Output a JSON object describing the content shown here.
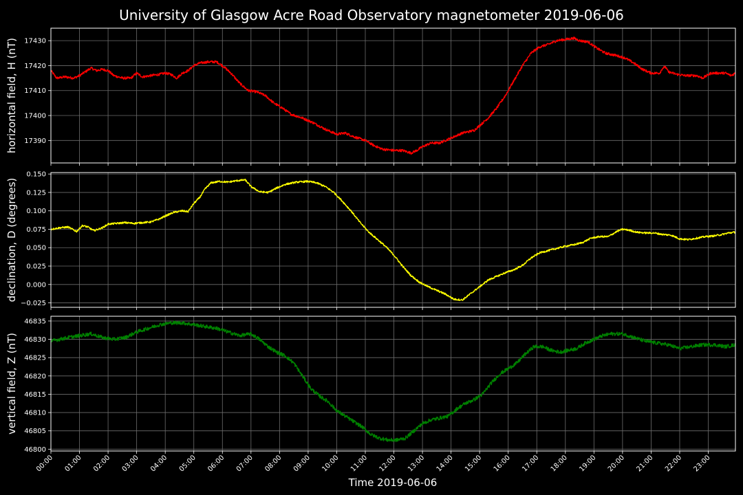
{
  "colors": {
    "background": "#000000",
    "axis": "#ffffff",
    "grid": "#6e6e6e",
    "text": "#ffffff"
  },
  "chart_data": [
    {
      "type": "line",
      "title": "University of Glasgow Acre Road Observatory magnetometer 2019-06-06",
      "ylabel": "horizontal field, H (nT)",
      "xlabel": "",
      "xlim_hours": [
        0,
        23.95
      ],
      "ylim": [
        17381,
        17435
      ],
      "yticks": [
        17390,
        17400,
        17410,
        17420,
        17430
      ],
      "ytick_labels": [
        "17390",
        "17400",
        "17410",
        "17420",
        "17430"
      ],
      "grid": true,
      "series": [
        {
          "color": "#ff0000",
          "noise": 0.5,
          "points": [
            [
              0.0,
              17418
            ],
            [
              0.2,
              17415
            ],
            [
              0.5,
              17415.5
            ],
            [
              0.8,
              17415
            ],
            [
              1.0,
              17416
            ],
            [
              1.2,
              17417.5
            ],
            [
              1.4,
              17419
            ],
            [
              1.6,
              17418
            ],
            [
              1.8,
              17418.5
            ],
            [
              2.0,
              17418
            ],
            [
              2.2,
              17416
            ],
            [
              2.5,
              17415
            ],
            [
              2.8,
              17415
            ],
            [
              3.0,
              17417
            ],
            [
              3.2,
              17415.5
            ],
            [
              3.5,
              17416
            ],
            [
              3.8,
              17416.5
            ],
            [
              4.0,
              17417
            ],
            [
              4.2,
              17416.5
            ],
            [
              4.4,
              17415
            ],
            [
              4.6,
              17417
            ],
            [
              4.8,
              17418
            ],
            [
              5.0,
              17420
            ],
            [
              5.2,
              17421
            ],
            [
              5.5,
              17421.5
            ],
            [
              5.8,
              17421.5
            ],
            [
              6.0,
              17420
            ],
            [
              6.3,
              17417
            ],
            [
              6.6,
              17413
            ],
            [
              6.9,
              17410
            ],
            [
              7.2,
              17409.5
            ],
            [
              7.5,
              17408
            ],
            [
              7.8,
              17405
            ],
            [
              8.1,
              17403
            ],
            [
              8.4,
              17400.5
            ],
            [
              8.8,
              17399
            ],
            [
              9.2,
              17397
            ],
            [
              9.6,
              17394.5
            ],
            [
              10.0,
              17392.5
            ],
            [
              10.3,
              17393
            ],
            [
              10.6,
              17391.5
            ],
            [
              11.0,
              17390
            ],
            [
              11.3,
              17388
            ],
            [
              11.6,
              17386.5
            ],
            [
              12.0,
              17386
            ],
            [
              12.3,
              17386
            ],
            [
              12.6,
              17385
            ],
            [
              12.8,
              17386
            ],
            [
              13.0,
              17387.5
            ],
            [
              13.3,
              17389
            ],
            [
              13.6,
              17389
            ],
            [
              14.0,
              17391
            ],
            [
              14.4,
              17393
            ],
            [
              14.8,
              17394
            ],
            [
              15.0,
              17396
            ],
            [
              15.3,
              17399
            ],
            [
              15.6,
              17403
            ],
            [
              15.9,
              17408
            ],
            [
              16.2,
              17414
            ],
            [
              16.5,
              17420
            ],
            [
              16.8,
              17425
            ],
            [
              17.1,
              17427.5
            ],
            [
              17.4,
              17428.5
            ],
            [
              17.7,
              17430
            ],
            [
              18.0,
              17430.5
            ],
            [
              18.3,
              17431
            ],
            [
              18.5,
              17430
            ],
            [
              18.8,
              17429.5
            ],
            [
              19.1,
              17427
            ],
            [
              19.4,
              17425
            ],
            [
              19.8,
              17424
            ],
            [
              20.1,
              17423
            ],
            [
              20.4,
              17421
            ],
            [
              20.7,
              17418.5
            ],
            [
              21.0,
              17417
            ],
            [
              21.3,
              17417
            ],
            [
              21.4,
              17419
            ],
            [
              21.5,
              17419.5
            ],
            [
              21.6,
              17417.5
            ],
            [
              21.9,
              17416.5
            ],
            [
              22.2,
              17416
            ],
            [
              22.6,
              17416
            ],
            [
              22.8,
              17415
            ],
            [
              23.1,
              17417
            ],
            [
              23.4,
              17417
            ],
            [
              23.6,
              17417
            ],
            [
              23.8,
              17416
            ],
            [
              23.95,
              17417
            ]
          ]
        }
      ]
    },
    {
      "type": "line",
      "title": "",
      "ylabel": "declination, D (degrees)",
      "xlabel": "",
      "xlim_hours": [
        0,
        23.95
      ],
      "ylim": [
        -0.031,
        0.152
      ],
      "yticks": [
        -0.025,
        0.0,
        0.025,
        0.05,
        0.075,
        0.1,
        0.125,
        0.15
      ],
      "ytick_labels": [
        "−0.025",
        "0.000",
        "0.025",
        "0.050",
        "0.075",
        "0.100",
        "0.125",
        "0.150"
      ],
      "grid": true,
      "series": [
        {
          "color": "#ffff00",
          "noise": 0.0012,
          "points": [
            [
              0.0,
              0.075
            ],
            [
              0.3,
              0.077
            ],
            [
              0.6,
              0.078
            ],
            [
              0.8,
              0.074
            ],
            [
              0.9,
              0.072
            ],
            [
              1.1,
              0.08
            ],
            [
              1.3,
              0.078
            ],
            [
              1.5,
              0.073
            ],
            [
              1.8,
              0.077
            ],
            [
              2.0,
              0.082
            ],
            [
              2.3,
              0.083
            ],
            [
              2.6,
              0.084
            ],
            [
              2.9,
              0.083
            ],
            [
              3.2,
              0.084
            ],
            [
              3.5,
              0.085
            ],
            [
              3.8,
              0.089
            ],
            [
              4.0,
              0.093
            ],
            [
              4.3,
              0.098
            ],
            [
              4.6,
              0.1
            ],
            [
              4.8,
              0.099
            ],
            [
              5.0,
              0.11
            ],
            [
              5.2,
              0.118
            ],
            [
              5.4,
              0.13
            ],
            [
              5.6,
              0.138
            ],
            [
              5.9,
              0.14
            ],
            [
              6.2,
              0.139
            ],
            [
              6.5,
              0.141
            ],
            [
              6.8,
              0.142
            ],
            [
              7.0,
              0.133
            ],
            [
              7.3,
              0.126
            ],
            [
              7.6,
              0.125
            ],
            [
              7.9,
              0.131
            ],
            [
              8.2,
              0.136
            ],
            [
              8.6,
              0.139
            ],
            [
              9.0,
              0.14
            ],
            [
              9.3,
              0.138
            ],
            [
              9.6,
              0.133
            ],
            [
              9.9,
              0.125
            ],
            [
              10.2,
              0.113
            ],
            [
              10.5,
              0.1
            ],
            [
              10.8,
              0.085
            ],
            [
              11.1,
              0.072
            ],
            [
              11.4,
              0.062
            ],
            [
              11.7,
              0.052
            ],
            [
              12.0,
              0.04
            ],
            [
              12.3,
              0.025
            ],
            [
              12.6,
              0.012
            ],
            [
              12.9,
              0.003
            ],
            [
              13.2,
              -0.003
            ],
            [
              13.5,
              -0.008
            ],
            [
              13.8,
              -0.013
            ],
            [
              14.1,
              -0.02
            ],
            [
              14.4,
              -0.021
            ],
            [
              14.7,
              -0.012
            ],
            [
              15.0,
              -0.003
            ],
            [
              15.3,
              0.006
            ],
            [
              15.6,
              0.011
            ],
            [
              15.9,
              0.016
            ],
            [
              16.2,
              0.02
            ],
            [
              16.5,
              0.026
            ],
            [
              16.8,
              0.036
            ],
            [
              17.1,
              0.043
            ],
            [
              17.4,
              0.046
            ],
            [
              17.7,
              0.049
            ],
            [
              18.0,
              0.052
            ],
            [
              18.3,
              0.054
            ],
            [
              18.6,
              0.057
            ],
            [
              18.9,
              0.063
            ],
            [
              19.2,
              0.065
            ],
            [
              19.5,
              0.065
            ],
            [
              19.8,
              0.072
            ],
            [
              20.0,
              0.075
            ],
            [
              20.2,
              0.074
            ],
            [
              20.5,
              0.071
            ],
            [
              20.8,
              0.07
            ],
            [
              21.1,
              0.07
            ],
            [
              21.4,
              0.068
            ],
            [
              21.7,
              0.067
            ],
            [
              22.0,
              0.062
            ],
            [
              22.3,
              0.061
            ],
            [
              22.6,
              0.063
            ],
            [
              22.9,
              0.065
            ],
            [
              23.2,
              0.066
            ],
            [
              23.5,
              0.068
            ],
            [
              23.7,
              0.07
            ],
            [
              23.95,
              0.071
            ]
          ]
        }
      ]
    },
    {
      "type": "line",
      "title": "",
      "ylabel": "vertical field, Z (nT)",
      "xlabel": "Time 2019-06-06",
      "xlim_hours": [
        0,
        23.95
      ],
      "ylim": [
        46799.5,
        46836.3
      ],
      "yticks": [
        46800,
        46805,
        46810,
        46815,
        46820,
        46825,
        46830,
        46835
      ],
      "ytick_labels": [
        "46800",
        "46805",
        "46810",
        "46815",
        "46820",
        "46825",
        "46830",
        "46835"
      ],
      "grid": true,
      "series": [
        {
          "color": "#008000",
          "noise": 0.5,
          "points": [
            [
              0.0,
              46829.5
            ],
            [
              0.3,
              46830
            ],
            [
              0.6,
              46830.5
            ],
            [
              1.0,
              46831
            ],
            [
              1.4,
              46831.5
            ],
            [
              1.8,
              46830.5
            ],
            [
              2.2,
              46830
            ],
            [
              2.6,
              46830.5
            ],
            [
              3.0,
              46832
            ],
            [
              3.4,
              46833
            ],
            [
              3.8,
              46834
            ],
            [
              4.2,
              46834.5
            ],
            [
              4.6,
              46834.5
            ],
            [
              5.0,
              46834
            ],
            [
              5.4,
              46833.5
            ],
            [
              5.8,
              46833
            ],
            [
              6.2,
              46832
            ],
            [
              6.6,
              46831
            ],
            [
              7.0,
              46831.5
            ],
            [
              7.3,
              46830
            ],
            [
              7.6,
              46828
            ],
            [
              7.9,
              46826.5
            ],
            [
              8.2,
              46825.5
            ],
            [
              8.5,
              46823.5
            ],
            [
              8.8,
              46820
            ],
            [
              9.1,
              46816.5
            ],
            [
              9.4,
              46814.5
            ],
            [
              9.7,
              46813
            ],
            [
              10.0,
              46810.5
            ],
            [
              10.3,
              46809
            ],
            [
              10.6,
              46807.5
            ],
            [
              10.9,
              46806
            ],
            [
              11.2,
              46804
            ],
            [
              11.5,
              46803
            ],
            [
              11.8,
              46802.5
            ],
            [
              12.1,
              46802.5
            ],
            [
              12.4,
              46803
            ],
            [
              12.7,
              46805
            ],
            [
              13.0,
              46807
            ],
            [
              13.3,
              46808
            ],
            [
              13.6,
              46808.5
            ],
            [
              13.9,
              46809
            ],
            [
              14.2,
              46811
            ],
            [
              14.5,
              46812.5
            ],
            [
              14.8,
              46813.5
            ],
            [
              15.1,
              46815
            ],
            [
              15.4,
              46818
            ],
            [
              15.7,
              46820.5
            ],
            [
              16.0,
              46822
            ],
            [
              16.3,
              46823.5
            ],
            [
              16.6,
              46826
            ],
            [
              16.9,
              46828
            ],
            [
              17.2,
              46828
            ],
            [
              17.5,
              46827
            ],
            [
              17.8,
              46826.5
            ],
            [
              18.1,
              46827
            ],
            [
              18.4,
              46827.5
            ],
            [
              18.7,
              46829
            ],
            [
              19.0,
              46830
            ],
            [
              19.3,
              46831
            ],
            [
              19.6,
              46831.5
            ],
            [
              20.0,
              46831.5
            ],
            [
              20.4,
              46830.5
            ],
            [
              20.8,
              46829.5
            ],
            [
              21.2,
              46829
            ],
            [
              21.6,
              46828.5
            ],
            [
              22.0,
              46827.5
            ],
            [
              22.4,
              46828
            ],
            [
              22.8,
              46828.5
            ],
            [
              23.2,
              46828.5
            ],
            [
              23.6,
              46828
            ],
            [
              23.95,
              46828.5
            ]
          ]
        }
      ]
    }
  ],
  "time_axis": {
    "tick_hours": [
      0,
      1,
      2,
      3,
      4,
      5,
      6,
      7,
      8,
      9,
      10,
      11,
      12,
      13,
      14,
      15,
      16,
      17,
      18,
      19,
      20,
      21,
      22,
      23
    ],
    "tick_labels": [
      "00:00",
      "01:00",
      "02:00",
      "03:00",
      "04:00",
      "05:00",
      "06:00",
      "07:00",
      "08:00",
      "09:00",
      "10:00",
      "11:00",
      "12:00",
      "13:00",
      "14:00",
      "15:00",
      "16:00",
      "17:00",
      "18:00",
      "19:00",
      "20:00",
      "21:00",
      "22:00",
      "23:00"
    ]
  }
}
